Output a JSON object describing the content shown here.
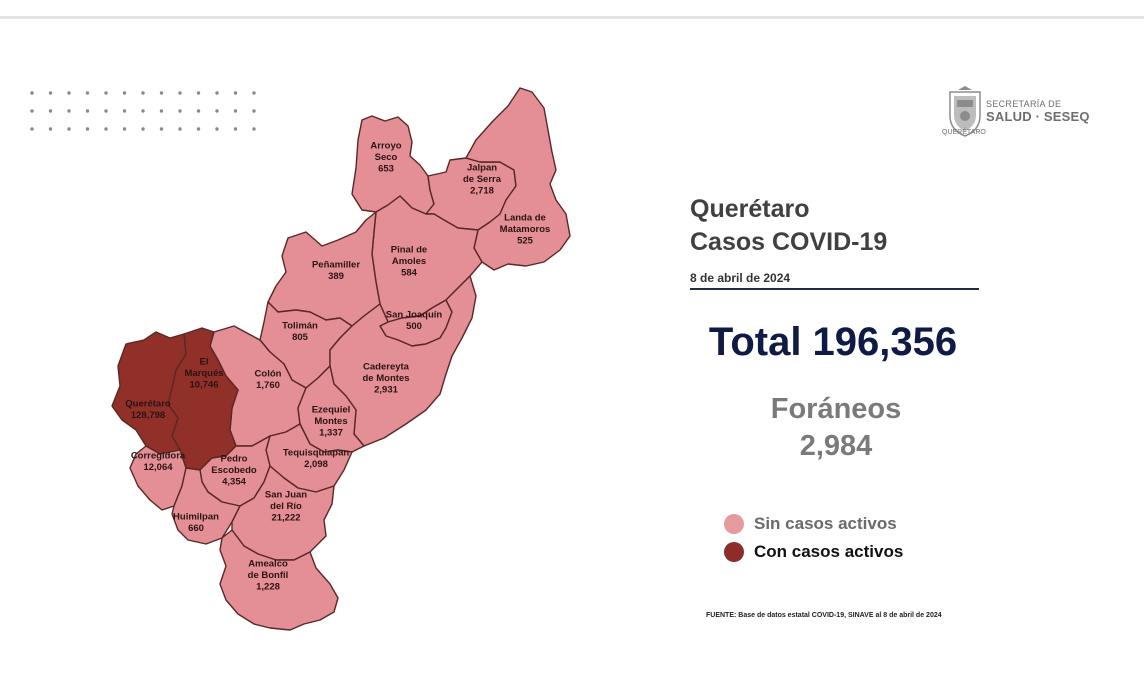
{
  "logo": {
    "line1": "SECRETARÍA DE",
    "line2": "SALUD · SESEQ",
    "line3": "QUERÉTARO"
  },
  "title": {
    "line1": "Querétaro",
    "line2": "Casos COVID-19"
  },
  "date": "8 de abril de 2024",
  "total": "Total 196,356",
  "foraneos": {
    "label": "Foráneos",
    "value": "2,984"
  },
  "legend": [
    {
      "label": "Sin casos activos",
      "color": "#e59aa0"
    },
    {
      "label": "Con casos activos",
      "color": "#8e2d27"
    }
  ],
  "source": "FUENTE: Base de datos estatal COVID-19, SINAVE al 8 de abril de 2024",
  "colors": {
    "inactive": "#e38f95",
    "active": "#913029",
    "active_text": "#ffffff",
    "inactive_text": "#2a1414"
  },
  "municipalities": [
    {
      "id": "arroyo-seco",
      "lines": [
        "Arroyo",
        "Seco",
        "653"
      ],
      "status": "inactive"
    },
    {
      "id": "jalpan-de-serra",
      "lines": [
        "Jalpan",
        "de Serra",
        "2,718"
      ],
      "status": "inactive"
    },
    {
      "id": "landa-de-matamoros",
      "lines": [
        "Landa de",
        "Matamoros",
        "525"
      ],
      "status": "inactive"
    },
    {
      "id": "pinal-de-amoles",
      "lines": [
        "Pinal de",
        "Amoles",
        "584"
      ],
      "status": "inactive"
    },
    {
      "id": "penamiller",
      "lines": [
        "Peñamiller",
        "389"
      ],
      "status": "inactive"
    },
    {
      "id": "san-joaquin",
      "lines": [
        "San Joaquín",
        "500"
      ],
      "status": "inactive"
    },
    {
      "id": "toliman",
      "lines": [
        "Tolimán",
        "805"
      ],
      "status": "inactive"
    },
    {
      "id": "cadereyta-de-montes",
      "lines": [
        "Cadereyta",
        "de Montes",
        "2,931"
      ],
      "status": "inactive"
    },
    {
      "id": "colon",
      "lines": [
        "Colón",
        "1,760"
      ],
      "status": "inactive"
    },
    {
      "id": "el-marques",
      "lines": [
        "El",
        "Marqués",
        "10,746"
      ],
      "status": "active"
    },
    {
      "id": "queretaro",
      "lines": [
        "Querétaro",
        "128,798"
      ],
      "status": "active"
    },
    {
      "id": "ezequiel-montes",
      "lines": [
        "Ezequiel",
        "Montes",
        "1,337"
      ],
      "status": "inactive"
    },
    {
      "id": "tequisquiapan",
      "lines": [
        "Tequisquiapan",
        "2,098"
      ],
      "status": "inactive"
    },
    {
      "id": "corregidora",
      "lines": [
        "Corregidora",
        "12,064"
      ],
      "status": "inactive"
    },
    {
      "id": "pedro-escobedo",
      "lines": [
        "Pedro",
        "Escobedo",
        "4,354"
      ],
      "status": "inactive"
    },
    {
      "id": "huimilpan",
      "lines": [
        "Huimilpan",
        "660"
      ],
      "status": "inactive"
    },
    {
      "id": "san-juan-del-rio",
      "lines": [
        "San Juan",
        "del Río",
        "21,222"
      ],
      "status": "inactive"
    },
    {
      "id": "amealco-de-bonfil",
      "lines": [
        "Amealco",
        "de Bonfil",
        "1,228"
      ],
      "status": "inactive"
    }
  ]
}
